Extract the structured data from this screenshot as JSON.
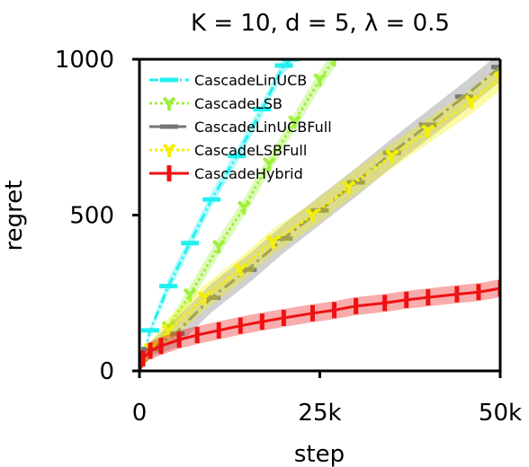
{
  "chart_data": {
    "type": "line",
    "title": "K = 10, d = 5, λ = 0.5",
    "xlabel": "step",
    "ylabel": "regret",
    "xlim": [
      0,
      50000
    ],
    "ylim": [
      0,
      1000
    ],
    "x_ticks": [
      {
        "value": 0,
        "label": "0"
      },
      {
        "value": 25000,
        "label": "25k"
      },
      {
        "value": 50000,
        "label": "50k"
      }
    ],
    "y_ticks": [
      {
        "value": 0,
        "label": "0"
      },
      {
        "value": 500,
        "label": "500"
      },
      {
        "value": 1000,
        "label": "1000"
      }
    ],
    "grid": false,
    "legend_position": "top-left",
    "series": [
      {
        "name": "CascadeLinUCB",
        "color": "#22f0f0",
        "dash": "10 4 2 4",
        "marker": "hbar",
        "x": [
          0,
          1500,
          4000,
          7000,
          10000,
          13500,
          17000,
          20000,
          21000
        ],
        "y": [
          0,
          130,
          272,
          410,
          550,
          690,
          840,
          980,
          1000
        ],
        "band": 8
      },
      {
        "name": "CascadeLSB",
        "color": "#9ef03a",
        "dash": "3 3",
        "marker": "tri_down",
        "x": [
          0,
          4000,
          7000,
          11000,
          14500,
          18000,
          21500,
          25000,
          27000
        ],
        "y": [
          0,
          140,
          245,
          400,
          525,
          665,
          800,
          935,
          1000
        ],
        "band": 10
      },
      {
        "name": "CascadeLinUCBFull",
        "color": "#777777",
        "dash": "14 5 3 5",
        "marker": "hbar",
        "x": [
          0,
          1500,
          5000,
          10000,
          15000,
          20000,
          25000,
          30000,
          35000,
          40000,
          45000,
          50000
        ],
        "y": [
          0,
          70,
          120,
          235,
          325,
          425,
          515,
          605,
          700,
          790,
          880,
          975
        ],
        "band": 16
      },
      {
        "name": "CascadeLSBFull",
        "color": "#f4f000",
        "dash": "3 3",
        "marker": "tri_down",
        "x": [
          0,
          1500,
          4000,
          9000,
          14000,
          18500,
          24000,
          29000,
          35000,
          40000,
          46000,
          50000
        ],
        "y": [
          0,
          70,
          130,
          235,
          325,
          415,
          500,
          590,
          690,
          770,
          865,
          940
        ],
        "band": 14
      },
      {
        "name": "CascadeHybrid",
        "color": "#ee1111",
        "dash": "",
        "marker": "vbar",
        "x": [
          0,
          500,
          1500,
          3000,
          5500,
          8000,
          11000,
          14000,
          17000,
          20000,
          24000,
          27000,
          30000,
          34000,
          37000,
          40000,
          44000,
          47000,
          50000
        ],
        "y": [
          0,
          40,
          65,
          80,
          100,
          115,
          130,
          145,
          158,
          170,
          185,
          195,
          208,
          218,
          228,
          236,
          246,
          253,
          265
        ],
        "band": 10
      }
    ]
  }
}
